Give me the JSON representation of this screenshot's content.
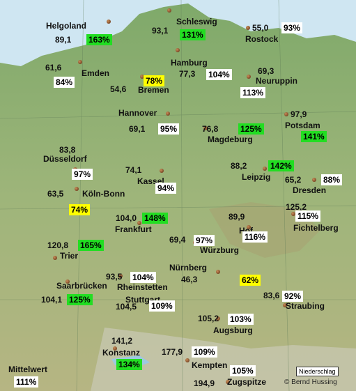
{
  "legend_label": "Niederschlag",
  "copyright": "© Bernd Hussing",
  "mean": {
    "label": "Mittelwert",
    "value": "111%",
    "color": "white"
  },
  "stations": [
    {
      "name": "Helgoland",
      "value": "89,1",
      "percent": "163%",
      "color": "green"
    },
    {
      "name": "Schleswig",
      "value": "93,1",
      "percent": "131%",
      "color": "green"
    },
    {
      "name": "Rostock",
      "value": "55,0",
      "percent": "93%",
      "color": "white"
    },
    {
      "name": "Emden",
      "value": "61,6",
      "percent": "84%",
      "color": "white"
    },
    {
      "name": "Bremen",
      "value": "54,6",
      "percent": "78%",
      "color": "yellow"
    },
    {
      "name": "Hamburg",
      "value": "77,3",
      "percent": "104%",
      "color": "white"
    },
    {
      "name": "Neuruppin",
      "value": "69,3",
      "percent": "113%",
      "color": "white"
    },
    {
      "name": "Hannover",
      "value": "69,1",
      "percent": "95%",
      "color": "white"
    },
    {
      "name": "Potsdam",
      "value": "97,9",
      "percent": "141%",
      "color": "green"
    },
    {
      "name": "Magdeburg",
      "value": "76,8",
      "percent": "125%",
      "color": "green"
    },
    {
      "name": "Düsseldorf",
      "value": "83,8",
      "percent": "97%",
      "color": "white"
    },
    {
      "name": "Kassel",
      "value": "74,1",
      "percent": "94%",
      "color": "white"
    },
    {
      "name": "Leipzig",
      "value": "88,2",
      "percent": "142%",
      "color": "green"
    },
    {
      "name": "Dresden",
      "value": "65,2",
      "percent": "88%",
      "color": "white"
    },
    {
      "name": "Köln-Bonn",
      "value": "63,5",
      "percent": "74%",
      "color": "yellow"
    },
    {
      "name": "Frankfurt",
      "value": "104,0",
      "percent": "148%",
      "color": "green"
    },
    {
      "name": "Fichtelberg",
      "value": "125,2",
      "percent": "115%",
      "color": "white"
    },
    {
      "name": "Trier",
      "value": "120,8",
      "percent": "165%",
      "color": "green"
    },
    {
      "name": "Würzburg",
      "value": "69,4",
      "percent": "97%",
      "color": "white"
    },
    {
      "name": "Hof",
      "value": "89,9",
      "percent": "116%",
      "color": "white"
    },
    {
      "name": "Nürnberg",
      "value": "46,3",
      "percent": "62%",
      "color": "yellow"
    },
    {
      "name": "Saarbrücken",
      "value": "104,1",
      "percent": "125%",
      "color": "green"
    },
    {
      "name": "Rheinstetten",
      "value": "93,5",
      "percent": "104%",
      "color": "white"
    },
    {
      "name": "Stuttgart",
      "value": "104,5",
      "percent": "109%",
      "color": "white"
    },
    {
      "name": "Straubing",
      "value": "83,6",
      "percent": "92%",
      "color": "white"
    },
    {
      "name": "Augsburg",
      "value": "105,2",
      "percent": "103%",
      "color": "white"
    },
    {
      "name": "Konstanz",
      "value": "141,2",
      "percent": "134%",
      "color": "green"
    },
    {
      "name": "Kempten",
      "value": "177,9",
      "percent": "109%",
      "color": "white"
    },
    {
      "name": "Zugspitze",
      "value": "194,9",
      "percent": "105%",
      "color": "white"
    }
  ]
}
